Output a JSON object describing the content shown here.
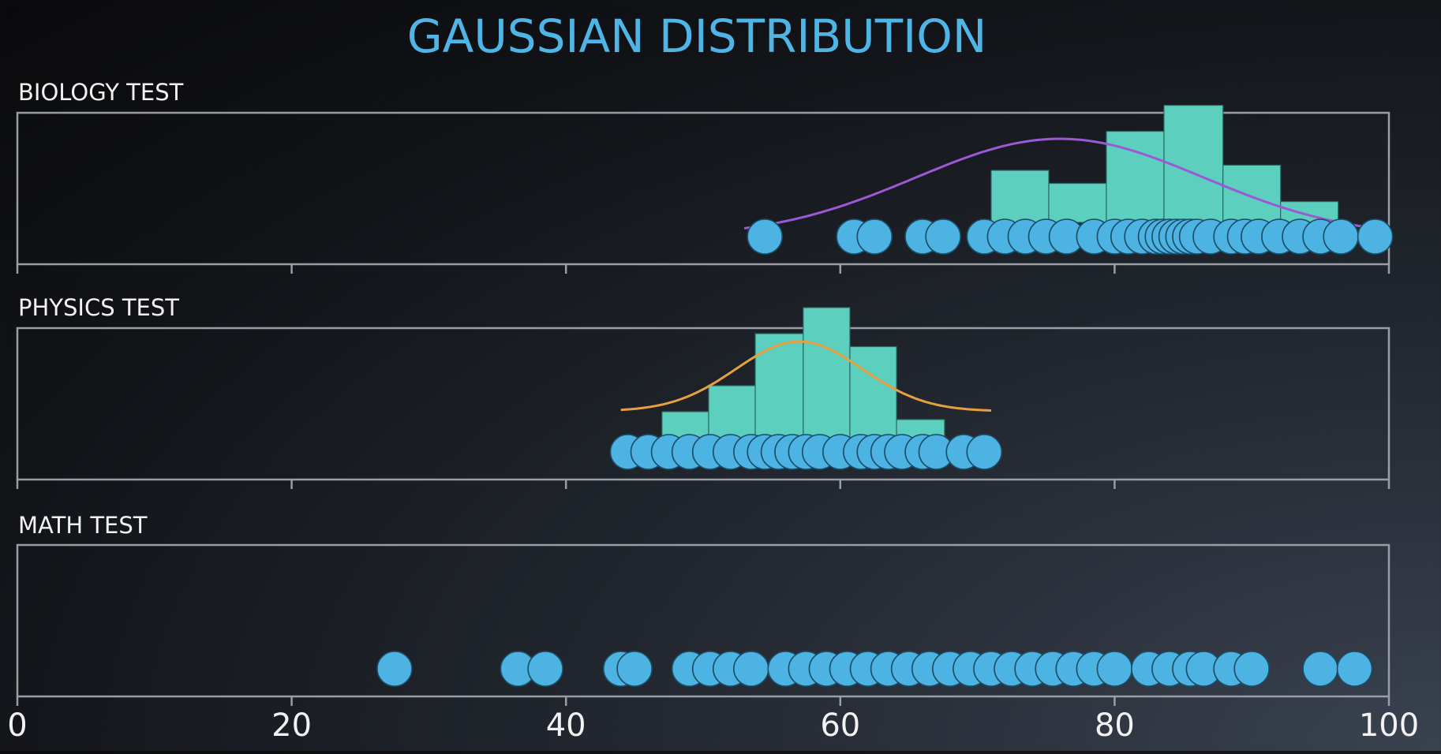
{
  "title": "GAUSSIAN DISTRIBUTION",
  "colors": {
    "title": "#4fb5e6",
    "dot_fill": "#4db3e3",
    "dot_stroke": "#1b4d66",
    "bar_fill": "#5ccfbf",
    "bar_stroke": "#2c6a62",
    "frame": "#9a9da3",
    "label": "#f2f2f2"
  },
  "chart_data": [
    {
      "type": "scatter",
      "panel": "BIOLOGY TEST",
      "xlim": [
        0,
        100
      ],
      "xticks": [
        "0",
        "20",
        "40",
        "60",
        "80",
        "100"
      ],
      "points": [
        54.5,
        61.0,
        62.5,
        66.0,
        67.5,
        70.5,
        72.0,
        73.5,
        75.0,
        76.5,
        78.5,
        80.0,
        81.0,
        82.0,
        83.0,
        83.5,
        84.0,
        84.5,
        85.0,
        85.5,
        86.0,
        87.0,
        88.5,
        89.5,
        90.5,
        92.0,
        93.5,
        95.0,
        96.5,
        99.0
      ],
      "histogram": {
        "bin_edges": [
          71.0,
          75.2,
          79.4,
          83.6,
          87.9,
          92.1,
          96.3
        ],
        "heights": [
          2,
          1.5,
          3.5,
          4.5,
          2.2,
          0.8
        ]
      },
      "curve": {
        "color": "#9b59d6",
        "mean": 76.0,
        "sd": 10.5,
        "x_range": [
          53,
          101
        ]
      }
    },
    {
      "type": "scatter",
      "panel": "PHYSICS TEST",
      "xlim": [
        0,
        100
      ],
      "xticks": [
        "0",
        "20",
        "40",
        "60",
        "80",
        "100"
      ],
      "points": [
        44.5,
        46.0,
        47.5,
        49.0,
        50.5,
        52.0,
        53.5,
        54.5,
        55.5,
        56.5,
        57.5,
        58.5,
        60.0,
        61.5,
        62.5,
        63.5,
        64.5,
        66.0,
        67.0,
        69.0,
        70.5
      ],
      "histogram": {
        "bin_edges": [
          47.0,
          50.4,
          53.8,
          57.3,
          60.7,
          64.1,
          67.6
        ],
        "heights": [
          1,
          2,
          4,
          5,
          3.5,
          0.7
        ]
      },
      "curve": {
        "color": "#e6a040",
        "mean": 57.0,
        "sd": 4.6,
        "x_range": [
          44,
          71
        ]
      }
    },
    {
      "type": "scatter",
      "panel": "MATH TEST",
      "xlim": [
        0,
        100
      ],
      "xticks": [
        "0",
        "20",
        "40",
        "60",
        "80",
        "100"
      ],
      "points": [
        27.5,
        36.5,
        38.5,
        44.0,
        45.0,
        49.0,
        50.5,
        52.0,
        53.5,
        56.0,
        57.5,
        59.0,
        60.5,
        62.0,
        63.5,
        65.0,
        66.5,
        68.0,
        69.5,
        71.0,
        72.5,
        74.0,
        75.5,
        77.0,
        78.5,
        80.0,
        82.5,
        84.0,
        85.5,
        86.5,
        88.5,
        90.0,
        95.0,
        97.5
      ]
    }
  ]
}
